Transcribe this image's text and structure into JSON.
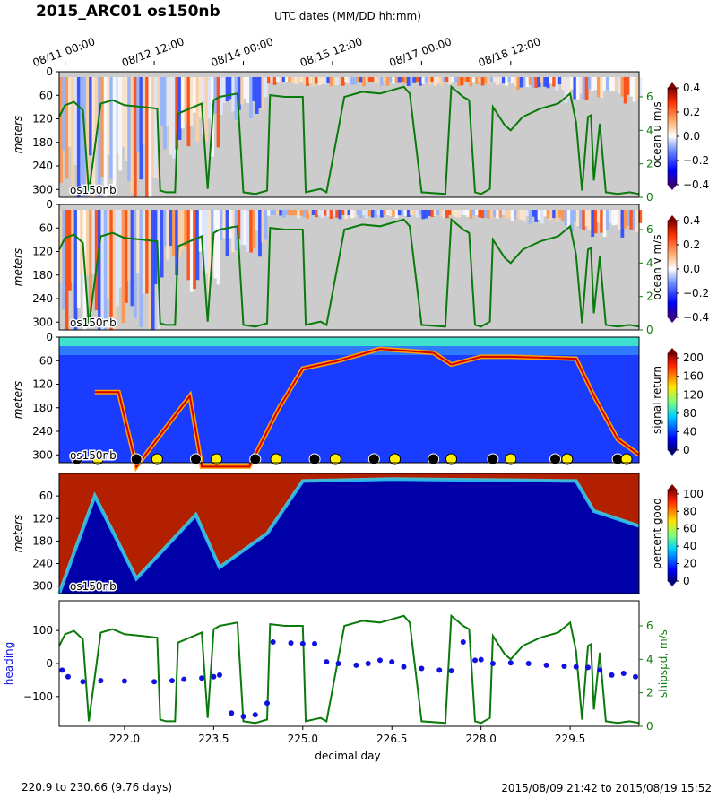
{
  "figure": {
    "title": "2015_ARC01 os150nb",
    "top_axis_label": "UTC dates (MM/DD hh:mm)",
    "top_ticks": [
      "08/11 00:00",
      "08/12 12:00",
      "08/14 00:00",
      "08/15 12:00",
      "08/17 00:00",
      "08/18 12:00"
    ],
    "footer_left": "220.9 to 230.66 (9.76 days)",
    "footer_right": "2015/08/09 21:42 to 2015/08/19 15:52",
    "xlabel": "decimal day",
    "instrument_label": "os150nb",
    "colors": {
      "speed": "#0a7a0a",
      "heading": "#1010e0",
      "nodata": "#cccccc"
    }
  },
  "chart_data": [
    {
      "type": "heatmap",
      "panel": "ocean u",
      "ylabel": "meters",
      "depth_ticks": [
        "0",
        "60",
        "120",
        "180",
        "240",
        "300"
      ],
      "depth_range": [
        0,
        320
      ],
      "x_range": [
        220.9,
        230.66
      ],
      "colorbar_label": "ocean u m/s",
      "colorbar_ticks": [
        "0.4",
        "0.2",
        "0.0",
        "−0.2",
        "−0.4"
      ],
      "colorbar_range": [
        -0.4,
        0.4
      ],
      "colormap": "seismic",
      "right_axis_ticks": [
        "6",
        "4",
        "2",
        "0"
      ],
      "right_axis_range": [
        0,
        7.5
      ],
      "overlay": "ship speed"
    },
    {
      "type": "heatmap",
      "panel": "ocean v",
      "ylabel": "meters",
      "depth_ticks": [
        "0",
        "60",
        "120",
        "180",
        "240",
        "300"
      ],
      "depth_range": [
        0,
        320
      ],
      "x_range": [
        220.9,
        230.66
      ],
      "colorbar_label": "ocean v m/s",
      "colorbar_ticks": [
        "0.4",
        "0.2",
        "0.0",
        "−0.2",
        "−0.4"
      ],
      "colorbar_range": [
        -0.4,
        0.4
      ],
      "colormap": "seismic",
      "right_axis_ticks": [
        "6",
        "4",
        "2",
        "0"
      ],
      "right_axis_range": [
        0,
        7.5
      ],
      "overlay": "ship speed"
    },
    {
      "type": "heatmap",
      "panel": "signal return",
      "ylabel": "meters",
      "depth_ticks": [
        "0",
        "60",
        "120",
        "180",
        "240",
        "300"
      ],
      "depth_range": [
        0,
        320
      ],
      "x_range": [
        220.9,
        230.66
      ],
      "colorbar_label": "signal return",
      "colorbar_ticks": [
        "200",
        "160",
        "120",
        "80",
        "40",
        "0"
      ],
      "colorbar_range": [
        0,
        210
      ],
      "colormap": "jet",
      "markers_black_days": [
        221.2,
        222.2,
        223.2,
        224.2,
        225.2,
        226.2,
        227.2,
        228.2,
        229.25,
        230.3
      ],
      "markers_yellow_days": [
        221.55,
        222.55,
        223.55,
        224.55,
        225.55,
        226.55,
        227.5,
        228.5,
        229.45,
        230.45
      ]
    },
    {
      "type": "heatmap",
      "panel": "percent good",
      "ylabel": "meters",
      "depth_ticks": [
        "60",
        "120",
        "180",
        "240",
        "300"
      ],
      "depth_range": [
        0,
        320
      ],
      "x_range": [
        220.9,
        230.66
      ],
      "colorbar_label": "percent good",
      "colorbar_ticks": [
        "100",
        "80",
        "60",
        "40",
        "20",
        "0"
      ],
      "colorbar_range": [
        0,
        105
      ],
      "colormap": "jet"
    },
    {
      "type": "scatter",
      "panel": "heading and ship speed",
      "ylabel": "heading",
      "right_ylabel": "shipspd, m/s",
      "y_ticks": [
        "100",
        "0",
        "−100"
      ],
      "y_range": [
        -190,
        190
      ],
      "right_axis_ticks": [
        "6",
        "4",
        "2",
        "0"
      ],
      "right_axis_range": [
        0,
        7.5
      ],
      "x_ticks": [
        "222.0",
        "223.5",
        "225.0",
        "226.5",
        "228.0",
        "229.5"
      ],
      "x_tick_values": [
        222.0,
        223.5,
        225.0,
        226.5,
        228.0,
        229.5
      ],
      "x_range": [
        220.9,
        230.66
      ],
      "series": [
        {
          "name": "shipspd",
          "x": [
            220.9,
            221.0,
            221.15,
            221.3,
            221.4,
            221.6,
            221.8,
            222.0,
            222.3,
            222.55,
            222.6,
            222.7,
            222.85,
            222.9,
            223.1,
            223.3,
            223.4,
            223.5,
            223.6,
            223.9,
            224.0,
            224.2,
            224.4,
            224.45,
            224.7,
            225.0,
            225.05,
            225.3,
            225.4,
            225.7,
            226.0,
            226.3,
            226.7,
            226.8,
            227.0,
            227.4,
            227.5,
            227.7,
            227.8,
            227.9,
            228.0,
            228.15,
            228.2,
            228.4,
            228.5,
            228.7,
            229.0,
            229.3,
            229.4,
            229.5,
            229.6,
            229.7,
            229.8,
            229.85,
            229.9,
            230.0,
            230.1,
            230.3,
            230.5,
            230.66
          ],
          "y": [
            4.8,
            5.5,
            5.7,
            5.2,
            0.3,
            5.6,
            5.8,
            5.5,
            5.4,
            5.3,
            0.4,
            0.3,
            0.3,
            5.0,
            5.3,
            5.6,
            0.5,
            5.8,
            6.0,
            6.2,
            0.3,
            0.2,
            0.4,
            6.1,
            6.0,
            6.0,
            0.3,
            0.5,
            0.3,
            6.0,
            6.3,
            6.2,
            6.6,
            6.2,
            0.3,
            0.2,
            6.6,
            6.0,
            5.8,
            0.3,
            0.2,
            0.5,
            5.4,
            4.3,
            4.0,
            4.8,
            5.3,
            5.6,
            5.9,
            6.2,
            4.5,
            0.4,
            4.8,
            4.9,
            1.0,
            4.4,
            0.3,
            0.2,
            0.3,
            0.2
          ]
        },
        {
          "name": "heading",
          "x": [
            220.95,
            221.05,
            221.3,
            221.6,
            222.0,
            222.5,
            222.8,
            223.0,
            223.3,
            223.5,
            223.6,
            223.8,
            224.0,
            224.2,
            224.4,
            224.5,
            224.8,
            225.0,
            225.2,
            225.4,
            225.6,
            225.9,
            226.1,
            226.3,
            226.5,
            226.7,
            227.0,
            227.3,
            227.5,
            227.7,
            227.9,
            228.0,
            228.2,
            228.5,
            228.8,
            229.1,
            229.4,
            229.6,
            229.8,
            230.0,
            230.2,
            230.4,
            230.6
          ],
          "y": [
            -20,
            -40,
            -55,
            -52,
            -53,
            -55,
            -52,
            -48,
            -44,
            -40,
            -35,
            -150,
            -160,
            -155,
            -120,
            65,
            62,
            60,
            60,
            5,
            0,
            -5,
            0,
            10,
            5,
            -10,
            -15,
            -20,
            -22,
            65,
            10,
            12,
            0,
            2,
            0,
            -5,
            -8,
            -10,
            -12,
            -20,
            -35,
            -30,
            -40
          ]
        }
      ]
    }
  ]
}
